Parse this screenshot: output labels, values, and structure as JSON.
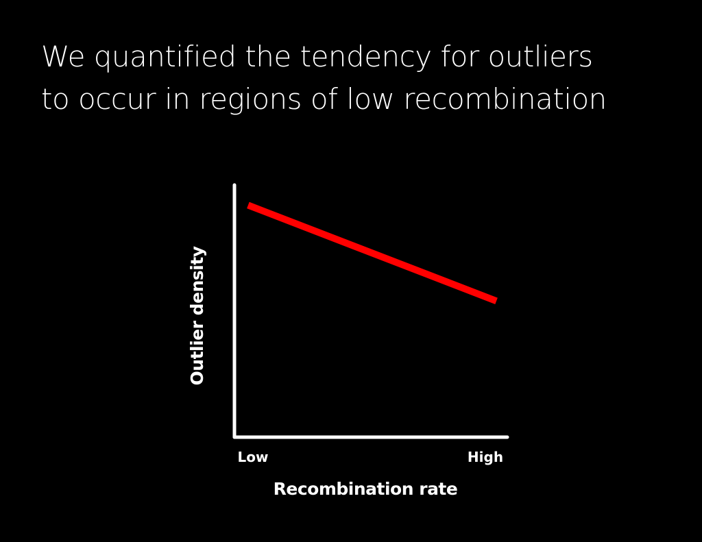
{
  "slide": {
    "title_lines": [
      "We quantified the tendency for outliers",
      "to occur in regions of low recombination"
    ]
  },
  "chart_data": {
    "type": "line",
    "title": "",
    "xlabel": "Recombination rate",
    "ylabel": "Outlier density",
    "x_ticks": [
      "Low",
      "High"
    ],
    "xlim": [
      0,
      1
    ],
    "ylim": [
      0,
      1
    ],
    "grid": false,
    "legend": "none",
    "series": [
      {
        "x": [
          0.05,
          0.96
        ],
        "y": [
          0.92,
          0.54
        ],
        "color": "#ff0000"
      }
    ],
    "axis_color": "#ffffff"
  }
}
